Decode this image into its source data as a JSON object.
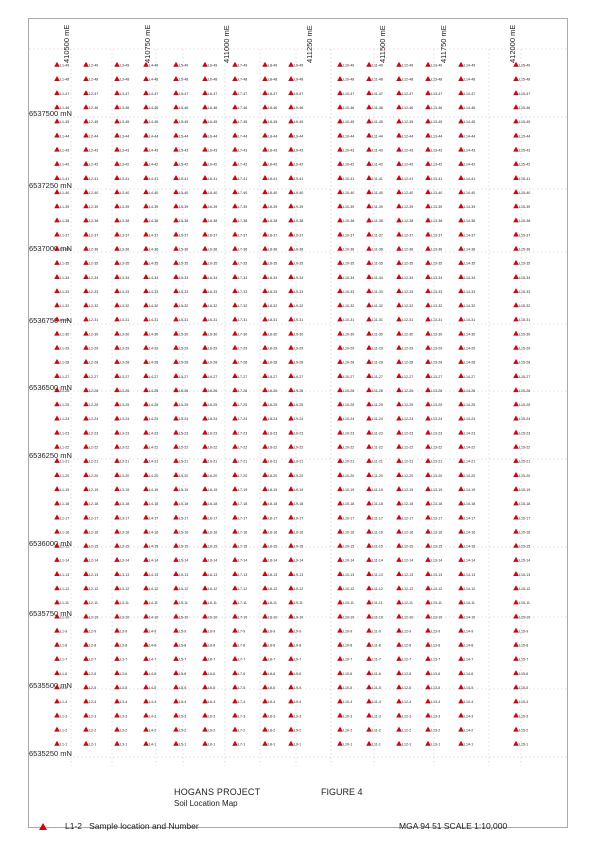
{
  "map": {
    "easting_labels": [
      "410500 mE",
      "410750 mE",
      "411000 mE",
      "411250 mE",
      "411500 mE",
      "411750 mE",
      "412000 mE"
    ],
    "northing_labels": [
      "6537500 mN",
      "6537250 mN",
      "6537000 mN",
      "6536750 mN",
      "6536500 mN",
      "6536250 mN",
      "6536000 mN",
      "6535750 mN",
      "6535500 mN",
      "6535250 mN"
    ],
    "sample_lines": 15,
    "samples_per_line": 49,
    "sample_label_format": "L{line}-{sample}",
    "marker_color": "#d4000b",
    "marker_icon": "triangle-marker-icon",
    "label_color": "#222222",
    "grid_color": "#bbbbbb"
  },
  "title_block": {
    "project": "HOGANS PROJECT",
    "subtitle": "Soil Location Map",
    "figure": "FIGURE 4",
    "legend_label": "L1-2   Sample location and Number",
    "scale": "MGA 94 51 SCALE 1:10,000"
  }
}
